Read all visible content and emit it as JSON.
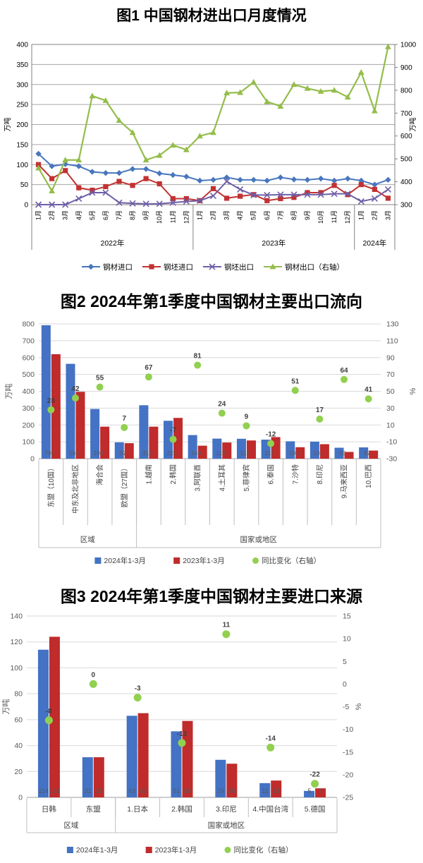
{
  "chart1": {
    "title": "图1 中国钢材进出口月度情况",
    "type": "line",
    "left_axis": {
      "label": "万吨",
      "min": 0,
      "max": 400,
      "step": 50
    },
    "right_axis": {
      "label": "万吨",
      "min": 300,
      "max": 1000,
      "step": 100
    },
    "months": [
      "1月",
      "2月",
      "3月",
      "4月",
      "5月",
      "6月",
      "7月",
      "8月",
      "9月",
      "10月",
      "11月",
      "12月",
      "1月",
      "2月",
      "3月",
      "4月",
      "5月",
      "6月",
      "7月",
      "8月",
      "9月",
      "10月",
      "11月",
      "12月",
      "1月",
      "2月",
      "3月"
    ],
    "year_groups": [
      {
        "label": "2022年",
        "count": 12
      },
      {
        "label": "2023年",
        "count": 12
      },
      {
        "label": "2024年",
        "count": 3
      }
    ],
    "series": [
      {
        "id": "steel-import",
        "name": "钢材进口",
        "axis": "left",
        "color": "#4876BE",
        "marker": "diamond",
        "values": [
          127,
          96,
          101,
          96,
          82,
          79,
          79,
          89,
          89,
          78,
          74,
          70,
          60,
          62,
          68,
          62,
          62,
          60,
          68,
          63,
          62,
          65,
          60,
          65,
          60,
          50,
          62
        ]
      },
      {
        "id": "billet-import",
        "name": "钢坯进口",
        "axis": "left",
        "color": "#C23232",
        "marker": "square",
        "values": [
          100,
          65,
          85,
          42,
          36,
          45,
          58,
          48,
          65,
          52,
          15,
          15,
          10,
          40,
          16,
          21,
          25,
          10,
          15,
          18,
          30,
          30,
          48,
          25,
          50,
          38,
          16
        ]
      },
      {
        "id": "billet-export",
        "name": "钢坯出口",
        "axis": "left",
        "color": "#6F5FA7",
        "marker": "x",
        "values": [
          0,
          0,
          0,
          15,
          30,
          30,
          5,
          3,
          2,
          2,
          5,
          8,
          10,
          22,
          58,
          38,
          24,
          24,
          25,
          25,
          25,
          25,
          27,
          27,
          8,
          15,
          38
        ]
      },
      {
        "id": "steel-export-right",
        "name": "钢材出口（右轴）",
        "axis": "right",
        "color": "#94BD4A",
        "marker": "triangle",
        "values": [
          460,
          360,
          495,
          495,
          775,
          755,
          668,
          615,
          495,
          515,
          560,
          540,
          600,
          615,
          788,
          790,
          835,
          750,
          730,
          825,
          808,
          795,
          800,
          770,
          878,
          710,
          990
        ]
      }
    ]
  },
  "chart2": {
    "title": "图2 2024年第1季度中国钢材主要出口流向",
    "type": "bar",
    "left_axis": {
      "label": "万吨",
      "min": 0,
      "max": 800,
      "step": 100
    },
    "right_axis": {
      "label": "%",
      "min": -30,
      "max": 130,
      "step": 20
    },
    "categories": [
      "东盟（10国）",
      "中东及北非地区",
      "海合会",
      "欧盟（27国）",
      "1.越南",
      "2.韩国",
      "3.阿联酋",
      "4.土耳其",
      "5.菲律宾",
      "6.泰国",
      "7.沙特",
      "8.印尼",
      "9.马来西亚",
      "10.巴西"
    ],
    "groups": [
      {
        "label": "区域",
        "count": 4
      },
      {
        "label": "国家或地区",
        "count": 10
      }
    ],
    "series": [
      {
        "id": "y2024",
        "name": "2024年1-3月",
        "color": "#4472C4",
        "values": [
          792,
          563,
          295,
          97,
          317,
          225,
          140,
          119,
          118,
          113,
          103,
          101,
          65,
          67
        ]
      },
      {
        "id": "y2023",
        "name": "2023年1-3月",
        "color": "#C02B2B",
        "values": [
          620,
          397,
          190,
          92,
          190,
          242,
          77,
          96,
          108,
          128,
          68,
          86,
          40,
          48
        ]
      }
    ],
    "yoy": {
      "id": "yoy",
      "name": "同比变化（右轴）",
      "color": "#92D050",
      "values": [
        28,
        42,
        55,
        7,
        67,
        -7,
        81,
        24,
        9,
        -12,
        51,
        17,
        64,
        41
      ]
    },
    "show_bar_labels": "first"
  },
  "chart3": {
    "title": "图3 2024年第1季度中国钢材主要进口来源",
    "type": "bar",
    "left_axis": {
      "label": "万吨",
      "min": 0,
      "max": 140,
      "step": 20
    },
    "right_axis": {
      "label": "%",
      "min": -25,
      "max": 15,
      "step": 5
    },
    "categories": [
      "日韩",
      "东盟",
      "1.日本",
      "2.韩国",
      "3.印尼",
      "4.中国台湾",
      "5.德国"
    ],
    "groups": [
      {
        "label": "区域",
        "count": 2
      },
      {
        "label": "国家或地区",
        "count": 5
      }
    ],
    "series": [
      {
        "id": "y2024",
        "name": "2024年1-3月",
        "color": "#4472C4",
        "values": [
          114,
          31,
          63,
          51,
          29,
          11,
          5
        ]
      },
      {
        "id": "y2023",
        "name": "2023年1-3月",
        "color": "#C02B2B",
        "values": [
          124,
          31,
          65,
          59,
          26,
          13,
          7
        ]
      }
    ],
    "yoy": {
      "id": "yoy",
      "name": "同比变化（右轴）",
      "color": "#92D050",
      "values": [
        -8,
        0,
        -3,
        -13,
        11,
        -14,
        -22
      ]
    },
    "show_bar_labels": "both"
  }
}
